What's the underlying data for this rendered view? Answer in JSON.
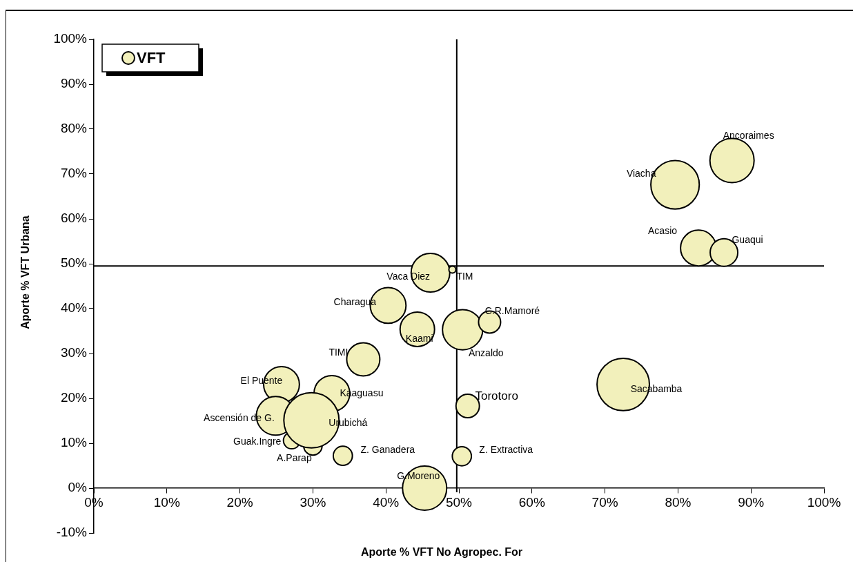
{
  "chart_data": {
    "type": "bubble",
    "xlabel": "Aporte % VFT No Agropec. For",
    "ylabel": "Aporte % VFT Urbana",
    "xlim": [
      0,
      100
    ],
    "ylim": [
      -10,
      100
    ],
    "xticks": [
      {
        "value": 0,
        "label": "0%"
      },
      {
        "value": 10,
        "label": "10%"
      },
      {
        "value": 20,
        "label": "20%"
      },
      {
        "value": 30,
        "label": "30%"
      },
      {
        "value": 40,
        "label": "40%"
      },
      {
        "value": 50,
        "label": "50%"
      },
      {
        "value": 60,
        "label": "60%"
      },
      {
        "value": 70,
        "label": "70%"
      },
      {
        "value": 80,
        "label": "80%"
      },
      {
        "value": 90,
        "label": "90%"
      },
      {
        "value": 100,
        "label": "100%"
      }
    ],
    "yticks": [
      {
        "value": -10,
        "label": "-10%"
      },
      {
        "value": 0,
        "label": "0%"
      },
      {
        "value": 10,
        "label": "10%"
      },
      {
        "value": 20,
        "label": "20%"
      },
      {
        "value": 30,
        "label": "30%"
      },
      {
        "value": 40,
        "label": "40%"
      },
      {
        "value": 50,
        "label": "50%"
      },
      {
        "value": 60,
        "label": "60%"
      },
      {
        "value": 70,
        "label": "70%"
      },
      {
        "value": 80,
        "label": "80%"
      },
      {
        "value": 90,
        "label": "90%"
      },
      {
        "value": 100,
        "label": "100%"
      }
    ],
    "grid": false,
    "legend": "top left",
    "ref_lines": [
      {
        "axis": "x",
        "value": 49.7
      },
      {
        "axis": "y",
        "value": 49.5
      }
    ],
    "series": [
      {
        "name": "VFT",
        "color": "#f2f0bb",
        "x": [
          87.4,
          79.6,
          82.8,
          86.3,
          46.1,
          49.1,
          40.3,
          44.3,
          50.5,
          54.2,
          36.9,
          25.7,
          32.6,
          24.9,
          27.1,
          30.0,
          29.8,
          34.1,
          50.4,
          51.2,
          45.3,
          72.5
        ],
        "values": [
          73.0,
          67.6,
          53.5,
          52.5,
          48.0,
          48.7,
          40.7,
          35.4,
          35.3,
          37.0,
          28.7,
          23.1,
          21.1,
          16.1,
          10.6,
          9.4,
          15.1,
          7.2,
          7.1,
          18.3,
          0,
          23.1
        ],
        "sizes": [
          0.64,
          0.77,
          0.42,
          0.25,
          0.49,
          0.016,
          0.42,
          0.39,
          0.53,
          0.16,
          0.36,
          0.42,
          0.42,
          0.49,
          0.09,
          0.11,
          1,
          0.12,
          0.12,
          0.18,
          0.64,
          0.9
        ],
        "value_labels": [
          "Ancoraimes",
          "Viacha",
          "Acasio",
          "Guaqui",
          "Vaca Diez",
          "TIM",
          "Charagua",
          "Kaami",
          "Anzaldo",
          "C.R.Mamoré",
          "TIMI",
          "El Puente",
          "Kaaguasu",
          "Ascensión de G.",
          "Guak.Ingre",
          "A.Parap",
          "Urubichá",
          "Z. Ganadera",
          "Z. Extractiva",
          "Torotoro",
          "G.Moreno",
          "Sacabamba"
        ]
      }
    ]
  }
}
